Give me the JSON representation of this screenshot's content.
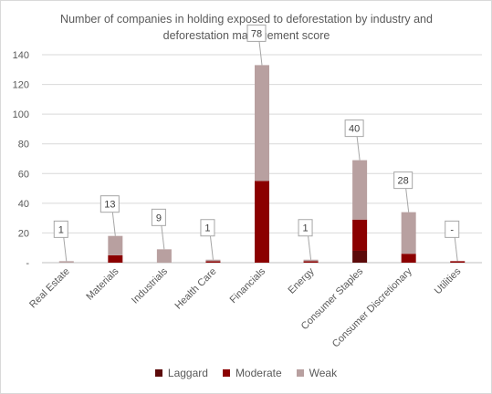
{
  "chart_data": {
    "type": "bar",
    "stacked": true,
    "title": "Number  of companies in holding exposed to deforestation by industry and deforestation management  score",
    "categories": [
      "Real Estate",
      "Materials",
      "Industrials",
      "Health Care",
      "Financials",
      "Energy",
      "Consumer Staples",
      "Consumer Discretionary",
      "Utilities"
    ],
    "series": [
      {
        "name": "Laggard",
        "color": "#5c0a0a",
        "values": [
          0,
          0,
          0,
          0,
          0,
          0,
          8,
          0,
          0
        ]
      },
      {
        "name": "Moderate",
        "color": "#8b0000",
        "values": [
          0,
          5,
          0,
          1,
          55,
          1,
          21,
          6,
          1
        ]
      },
      {
        "name": "Weak",
        "color": "#b8a0a0",
        "values": [
          1,
          13,
          9,
          1,
          78,
          1,
          40,
          28,
          0
        ]
      }
    ],
    "callouts": [
      "1",
      "13",
      "9",
      "1",
      "78",
      "1",
      "40",
      "28",
      "-"
    ],
    "ylim": [
      0,
      140
    ],
    "yticks": [
      "-",
      "20",
      "40",
      "60",
      "80",
      "100",
      "120",
      "140"
    ],
    "grid": true,
    "legend": "bottom"
  }
}
